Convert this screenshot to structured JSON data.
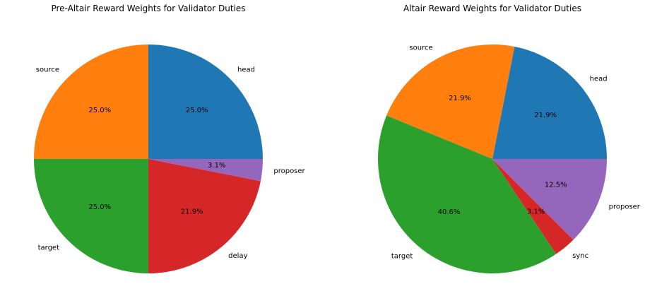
{
  "chart_data": [
    {
      "type": "pie",
      "title": "Pre-Altair Reward Weights for Validator Duties",
      "start_angle_deg": 0,
      "direction": "counterclockwise",
      "slices": [
        {
          "label": "head",
          "value": 25.0,
          "pct_label": "25.0%",
          "color": "#1f77b4"
        },
        {
          "label": "source",
          "value": 25.0,
          "pct_label": "25.0%",
          "color": "#ff7f0e"
        },
        {
          "label": "target",
          "value": 25.0,
          "pct_label": "25.0%",
          "color": "#2ca02c"
        },
        {
          "label": "delay",
          "value": 21.9,
          "pct_label": "21.9%",
          "color": "#d62728"
        },
        {
          "label": "proposer",
          "value": 3.1,
          "pct_label": "3.1%",
          "color": "#9467bd"
        }
      ]
    },
    {
      "type": "pie",
      "title": "Altair Reward Weights for Validator Duties",
      "start_angle_deg": 0,
      "direction": "counterclockwise",
      "slices": [
        {
          "label": "head",
          "value": 21.9,
          "pct_label": "21.9%",
          "color": "#1f77b4"
        },
        {
          "label": "source",
          "value": 21.9,
          "pct_label": "21.9%",
          "color": "#ff7f0e"
        },
        {
          "label": "target",
          "value": 40.6,
          "pct_label": "40.6%",
          "color": "#2ca02c"
        },
        {
          "label": "sync",
          "value": 3.1,
          "pct_label": "3.1%",
          "color": "#d62728"
        },
        {
          "label": "proposer",
          "value": 12.5,
          "pct_label": "12.5%",
          "color": "#9467bd"
        }
      ]
    }
  ]
}
